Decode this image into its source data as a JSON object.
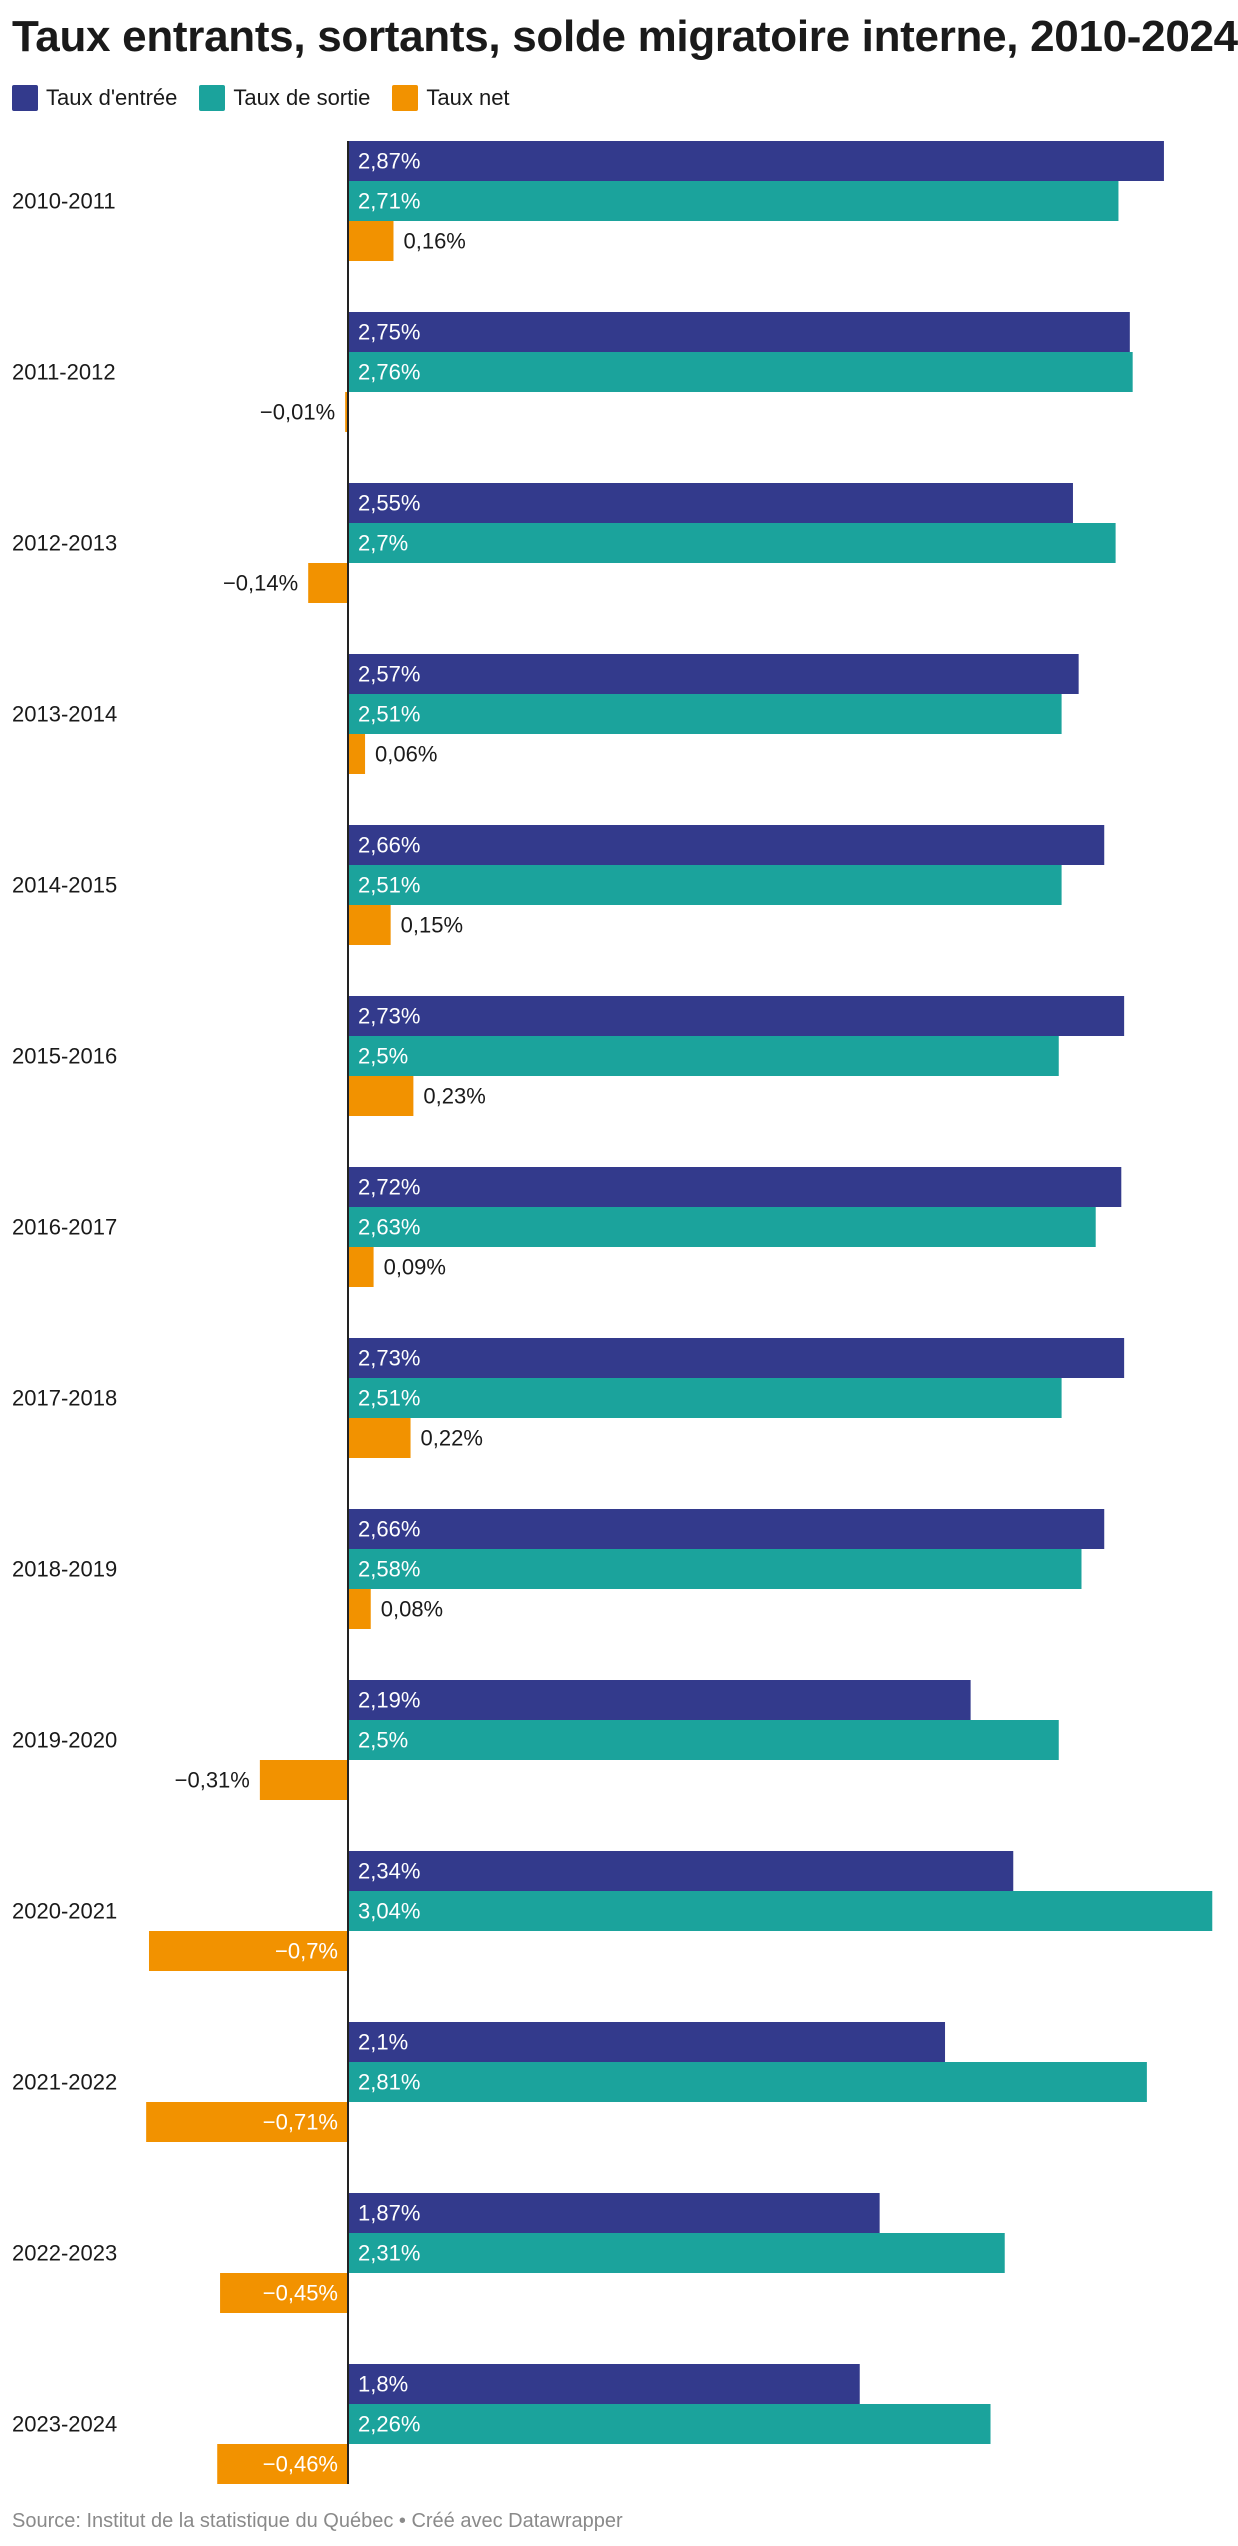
{
  "title": "Taux entrants, sortants, solde migratoire interne, 2010-2024",
  "source": "Source: Institut de la statistique du Québec • Créé avec Datawrapper",
  "colors": {
    "entree": "#333a8c",
    "sortie": "#1ba39c",
    "net": "#f29200",
    "axis": "#222222"
  },
  "chart_data": {
    "type": "bar",
    "orientation": "horizontal",
    "categories": [
      "2010-2011",
      "2011-2012",
      "2012-2013",
      "2013-2014",
      "2014-2015",
      "2015-2016",
      "2016-2017",
      "2017-2018",
      "2018-2019",
      "2019-2020",
      "2020-2021",
      "2021-2022",
      "2022-2023",
      "2023-2024"
    ],
    "series": [
      {
        "name": "Taux d'entrée",
        "color": "#333a8c",
        "values": [
          2.87,
          2.75,
          2.55,
          2.57,
          2.66,
          2.73,
          2.72,
          2.73,
          2.66,
          2.19,
          2.34,
          2.1,
          1.87,
          1.8
        ],
        "labels": [
          "2,87%",
          "2,75%",
          "2,55%",
          "2,57%",
          "2,66%",
          "2,73%",
          "2,72%",
          "2,73%",
          "2,66%",
          "2,19%",
          "2,34%",
          "2,1%",
          "1,87%",
          "1,8%"
        ]
      },
      {
        "name": "Taux de sortie",
        "color": "#1ba39c",
        "values": [
          2.71,
          2.76,
          2.7,
          2.51,
          2.51,
          2.5,
          2.63,
          2.51,
          2.58,
          2.5,
          3.04,
          2.81,
          2.31,
          2.26
        ],
        "labels": [
          "2,71%",
          "2,76%",
          "2,7%",
          "2,51%",
          "2,51%",
          "2,5%",
          "2,63%",
          "2,51%",
          "2,58%",
          "2,5%",
          "3,04%",
          "2,81%",
          "2,31%",
          "2,26%"
        ]
      },
      {
        "name": "Taux net",
        "color": "#f29200",
        "values": [
          0.16,
          -0.01,
          -0.14,
          0.06,
          0.15,
          0.23,
          0.09,
          0.22,
          0.08,
          -0.31,
          -0.7,
          -0.71,
          -0.45,
          -0.46
        ],
        "labels": [
          "0,16%",
          "−0,01%",
          "−0,14%",
          "0,06%",
          "0,15%",
          "0,23%",
          "0,09%",
          "0,22%",
          "0,08%",
          "−0,31%",
          "−0,7%",
          "−0,71%",
          "−0,45%",
          "−0,46%"
        ]
      }
    ],
    "legend": "top-left",
    "grid": false
  }
}
